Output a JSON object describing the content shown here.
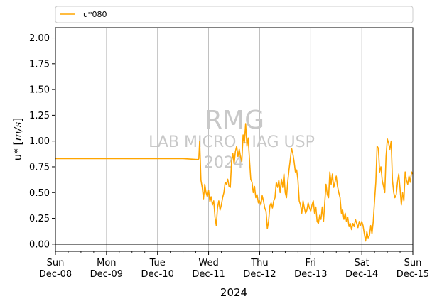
{
  "chart_data": {
    "type": "line",
    "xlabel": "2024",
    "ylabel": "u* [m/s]",
    "ylabel_main": "u* [",
    "ylabel_unit": "m/s",
    "ylabel_close": "]",
    "ylim": [
      -0.07,
      2.1
    ],
    "xlim": [
      "2024-12-08T00:00",
      "2024-12-15T00:00"
    ],
    "yticks": [
      "0.00",
      "0.25",
      "0.50",
      "0.75",
      "1.00",
      "1.25",
      "1.50",
      "1.75",
      "2.00"
    ],
    "xticks": [
      {
        "day": "Sun",
        "date": "Dec-08"
      },
      {
        "day": "Mon",
        "date": "Dec-09"
      },
      {
        "day": "Tue",
        "date": "Dec-10"
      },
      {
        "day": "Wed",
        "date": "Dec-11"
      },
      {
        "day": "Thu",
        "date": "Dec-12"
      },
      {
        "day": "Fri",
        "date": "Dec-13"
      },
      {
        "day": "Sat",
        "date": "Dec-14"
      },
      {
        "day": "Sun",
        "date": "Dec-15"
      }
    ],
    "grid": "vertical at day ticks",
    "reference_line": 0,
    "legend_position": "top, above plot",
    "watermark": [
      "RMG",
      "LAB MICRO - IAG USP",
      "2024"
    ],
    "series": [
      {
        "name": "u*080",
        "color": "#ffa500",
        "points": [
          [
            "2024-12-08T00:00",
            0.83
          ],
          [
            "2024-12-08T12:00",
            0.83
          ],
          [
            "2024-12-09T00:00",
            0.83
          ],
          [
            "2024-12-09T12:00",
            0.83
          ],
          [
            "2024-12-10T00:00",
            0.83
          ],
          [
            "2024-12-10T12:00",
            0.83
          ],
          [
            "2024-12-10T19:12",
            0.82
          ],
          [
            "2024-12-10T19:24",
            0.83
          ],
          [
            "2024-12-10T19:48",
            1.0
          ],
          [
            "2024-12-10T20:24",
            0.62
          ],
          [
            "2024-12-10T21:00",
            0.55
          ],
          [
            "2024-12-10T21:36",
            0.44
          ],
          [
            "2024-12-10T22:12",
            0.58
          ],
          [
            "2024-12-10T22:48",
            0.5
          ],
          [
            "2024-12-10T23:24",
            0.46
          ],
          [
            "2024-12-11T00:00",
            0.52
          ],
          [
            "2024-12-11T00:36",
            0.41
          ],
          [
            "2024-12-11T01:12",
            0.46
          ],
          [
            "2024-12-11T01:48",
            0.38
          ],
          [
            "2024-12-11T02:24",
            0.42
          ],
          [
            "2024-12-11T03:00",
            0.26
          ],
          [
            "2024-12-11T03:36",
            0.18
          ],
          [
            "2024-12-11T04:12",
            0.35
          ],
          [
            "2024-12-11T04:48",
            0.42
          ],
          [
            "2024-12-11T05:24",
            0.33
          ],
          [
            "2024-12-11T06:00",
            0.38
          ],
          [
            "2024-12-11T06:36",
            0.45
          ],
          [
            "2024-12-11T07:12",
            0.5
          ],
          [
            "2024-12-11T07:48",
            0.6
          ],
          [
            "2024-12-11T08:24",
            0.58
          ],
          [
            "2024-12-11T09:00",
            0.63
          ],
          [
            "2024-12-11T09:36",
            0.56
          ],
          [
            "2024-12-11T10:12",
            0.55
          ],
          [
            "2024-12-11T10:48",
            0.8
          ],
          [
            "2024-12-11T11:24",
            0.88
          ],
          [
            "2024-12-11T12:00",
            0.78
          ],
          [
            "2024-12-11T12:36",
            0.9
          ],
          [
            "2024-12-11T13:12",
            0.95
          ],
          [
            "2024-12-11T13:48",
            0.85
          ],
          [
            "2024-12-11T14:24",
            0.92
          ],
          [
            "2024-12-11T15:00",
            0.85
          ],
          [
            "2024-12-11T15:36",
            0.8
          ],
          [
            "2024-12-11T16:12",
            1.06
          ],
          [
            "2024-12-11T16:48",
            0.98
          ],
          [
            "2024-12-11T17:24",
            1.17
          ],
          [
            "2024-12-11T18:00",
            0.95
          ],
          [
            "2024-12-11T18:36",
            1.03
          ],
          [
            "2024-12-11T19:12",
            0.82
          ],
          [
            "2024-12-11T19:48",
            0.63
          ],
          [
            "2024-12-11T20:24",
            0.6
          ],
          [
            "2024-12-11T21:00",
            0.5
          ],
          [
            "2024-12-11T21:36",
            0.56
          ],
          [
            "2024-12-11T22:12",
            0.45
          ],
          [
            "2024-12-11T22:48",
            0.48
          ],
          [
            "2024-12-11T23:24",
            0.4
          ],
          [
            "2024-12-12T00:00",
            0.42
          ],
          [
            "2024-12-12T00:36",
            0.38
          ],
          [
            "2024-12-12T01:12",
            0.47
          ],
          [
            "2024-12-12T01:48",
            0.42
          ],
          [
            "2024-12-12T02:24",
            0.35
          ],
          [
            "2024-12-12T03:00",
            0.32
          ],
          [
            "2024-12-12T03:36",
            0.15
          ],
          [
            "2024-12-12T04:12",
            0.22
          ],
          [
            "2024-12-12T04:48",
            0.37
          ],
          [
            "2024-12-12T05:24",
            0.4
          ],
          [
            "2024-12-12T06:00",
            0.35
          ],
          [
            "2024-12-12T06:36",
            0.42
          ],
          [
            "2024-12-12T07:12",
            0.45
          ],
          [
            "2024-12-12T07:48",
            0.6
          ],
          [
            "2024-12-12T08:24",
            0.55
          ],
          [
            "2024-12-12T09:00",
            0.62
          ],
          [
            "2024-12-12T09:36",
            0.5
          ],
          [
            "2024-12-12T10:12",
            0.63
          ],
          [
            "2024-12-12T10:48",
            0.55
          ],
          [
            "2024-12-12T11:24",
            0.68
          ],
          [
            "2024-12-12T12:00",
            0.5
          ],
          [
            "2024-12-12T12:36",
            0.45
          ],
          [
            "2024-12-12T13:12",
            0.6
          ],
          [
            "2024-12-12T13:48",
            0.72
          ],
          [
            "2024-12-12T14:24",
            0.82
          ],
          [
            "2024-12-12T15:00",
            0.93
          ],
          [
            "2024-12-12T15:36",
            0.88
          ],
          [
            "2024-12-12T16:12",
            0.8
          ],
          [
            "2024-12-12T16:48",
            0.7
          ],
          [
            "2024-12-12T17:24",
            0.72
          ],
          [
            "2024-12-12T18:00",
            0.62
          ],
          [
            "2024-12-12T18:36",
            0.42
          ],
          [
            "2024-12-12T19:12",
            0.38
          ],
          [
            "2024-12-12T19:48",
            0.3
          ],
          [
            "2024-12-12T20:24",
            0.42
          ],
          [
            "2024-12-12T21:00",
            0.35
          ],
          [
            "2024-12-12T21:36",
            0.3
          ],
          [
            "2024-12-12T22:12",
            0.33
          ],
          [
            "2024-12-12T22:48",
            0.4
          ],
          [
            "2024-12-12T23:24",
            0.35
          ],
          [
            "2024-12-13T00:00",
            0.32
          ],
          [
            "2024-12-13T00:36",
            0.38
          ],
          [
            "2024-12-13T01:12",
            0.42
          ],
          [
            "2024-12-13T01:48",
            0.3
          ],
          [
            "2024-12-13T02:24",
            0.36
          ],
          [
            "2024-12-13T03:00",
            0.22
          ],
          [
            "2024-12-13T03:36",
            0.2
          ],
          [
            "2024-12-13T04:12",
            0.28
          ],
          [
            "2024-12-13T04:48",
            0.24
          ],
          [
            "2024-12-13T05:24",
            0.36
          ],
          [
            "2024-12-13T06:00",
            0.22
          ],
          [
            "2024-12-13T06:36",
            0.4
          ],
          [
            "2024-12-13T07:12",
            0.58
          ],
          [
            "2024-12-13T07:48",
            0.48
          ],
          [
            "2024-12-13T08:24",
            0.45
          ],
          [
            "2024-12-13T09:00",
            0.7
          ],
          [
            "2024-12-13T09:36",
            0.58
          ],
          [
            "2024-12-13T10:12",
            0.68
          ],
          [
            "2024-12-13T10:48",
            0.55
          ],
          [
            "2024-12-13T11:24",
            0.6
          ],
          [
            "2024-12-13T12:00",
            0.66
          ],
          [
            "2024-12-13T12:36",
            0.56
          ],
          [
            "2024-12-13T13:12",
            0.5
          ],
          [
            "2024-12-13T13:48",
            0.45
          ],
          [
            "2024-12-13T14:24",
            0.3
          ],
          [
            "2024-12-13T15:00",
            0.33
          ],
          [
            "2024-12-13T15:36",
            0.24
          ],
          [
            "2024-12-13T16:12",
            0.3
          ],
          [
            "2024-12-13T16:48",
            0.22
          ],
          [
            "2024-12-13T17:24",
            0.26
          ],
          [
            "2024-12-13T18:00",
            0.17
          ],
          [
            "2024-12-13T18:36",
            0.2
          ],
          [
            "2024-12-13T19:12",
            0.14
          ],
          [
            "2024-12-13T19:48",
            0.2
          ],
          [
            "2024-12-13T20:24",
            0.17
          ],
          [
            "2024-12-13T21:00",
            0.24
          ],
          [
            "2024-12-13T21:36",
            0.2
          ],
          [
            "2024-12-13T22:12",
            0.16
          ],
          [
            "2024-12-13T22:48",
            0.22
          ],
          [
            "2024-12-13T23:24",
            0.18
          ],
          [
            "2024-12-14T00:00",
            0.22
          ],
          [
            "2024-12-14T00:36",
            0.18
          ],
          [
            "2024-12-14T01:12",
            0.1
          ],
          [
            "2024-12-14T01:48",
            0.03
          ],
          [
            "2024-12-14T02:24",
            0.12
          ],
          [
            "2024-12-14T03:00",
            0.06
          ],
          [
            "2024-12-14T03:36",
            0.08
          ],
          [
            "2024-12-14T04:12",
            0.18
          ],
          [
            "2024-12-14T04:48",
            0.1
          ],
          [
            "2024-12-14T05:24",
            0.22
          ],
          [
            "2024-12-14T06:00",
            0.42
          ],
          [
            "2024-12-14T06:36",
            0.6
          ],
          [
            "2024-12-14T07:12",
            0.95
          ],
          [
            "2024-12-14T07:48",
            0.93
          ],
          [
            "2024-12-14T08:24",
            0.7
          ],
          [
            "2024-12-14T09:00",
            0.75
          ],
          [
            "2024-12-14T09:36",
            0.62
          ],
          [
            "2024-12-14T10:12",
            0.56
          ],
          [
            "2024-12-14T10:48",
            0.5
          ],
          [
            "2024-12-14T11:24",
            0.85
          ],
          [
            "2024-12-14T12:00",
            1.02
          ],
          [
            "2024-12-14T12:36",
            0.98
          ],
          [
            "2024-12-14T13:12",
            0.92
          ],
          [
            "2024-12-14T13:48",
            1.0
          ],
          [
            "2024-12-14T14:24",
            0.62
          ],
          [
            "2024-12-14T15:00",
            0.5
          ],
          [
            "2024-12-14T15:36",
            0.45
          ],
          [
            "2024-12-14T16:12",
            0.48
          ],
          [
            "2024-12-14T16:48",
            0.6
          ],
          [
            "2024-12-14T17:24",
            0.68
          ],
          [
            "2024-12-14T18:00",
            0.54
          ],
          [
            "2024-12-14T18:36",
            0.38
          ],
          [
            "2024-12-14T19:12",
            0.5
          ],
          [
            "2024-12-14T19:48",
            0.42
          ],
          [
            "2024-12-14T20:24",
            0.7
          ],
          [
            "2024-12-14T21:00",
            0.62
          ],
          [
            "2024-12-14T21:36",
            0.58
          ],
          [
            "2024-12-14T22:12",
            0.66
          ],
          [
            "2024-12-14T22:48",
            0.6
          ],
          [
            "2024-12-14T23:24",
            0.7
          ],
          [
            "2024-12-15T00:00",
            0.68
          ]
        ]
      }
    ]
  }
}
